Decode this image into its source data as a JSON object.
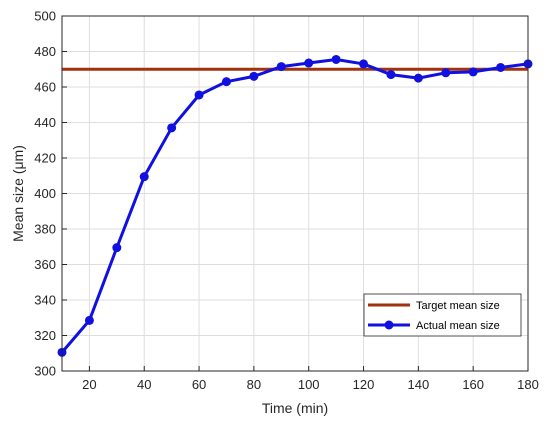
{
  "chart_data": {
    "type": "line",
    "title": "",
    "xlabel": "Time (min)",
    "ylabel": "Mean size (μm)",
    "xlim": [
      10,
      180
    ],
    "ylim": [
      300,
      500
    ],
    "x_ticks": [
      20,
      40,
      60,
      80,
      100,
      120,
      140,
      160,
      180
    ],
    "y_ticks": [
      300,
      320,
      340,
      360,
      380,
      400,
      420,
      440,
      460,
      480,
      500
    ],
    "grid": true,
    "legend_position": "bottom-right",
    "series": [
      {
        "name": "Target mean size",
        "color": "#a0320f",
        "marker": "none",
        "x": [
          10,
          180
        ],
        "y": [
          470,
          470
        ]
      },
      {
        "name": "Actual mean size",
        "color": "#1010e0",
        "marker": "circle",
        "x": [
          10,
          20,
          30,
          40,
          50,
          60,
          70,
          80,
          90,
          100,
          110,
          120,
          130,
          140,
          150,
          160,
          170,
          180
        ],
        "y": [
          310.5,
          328.5,
          369.5,
          409.5,
          437,
          455.5,
          463,
          466,
          471.5,
          473.5,
          475.5,
          473,
          467,
          465,
          468,
          468.5,
          471,
          473
        ]
      }
    ]
  }
}
